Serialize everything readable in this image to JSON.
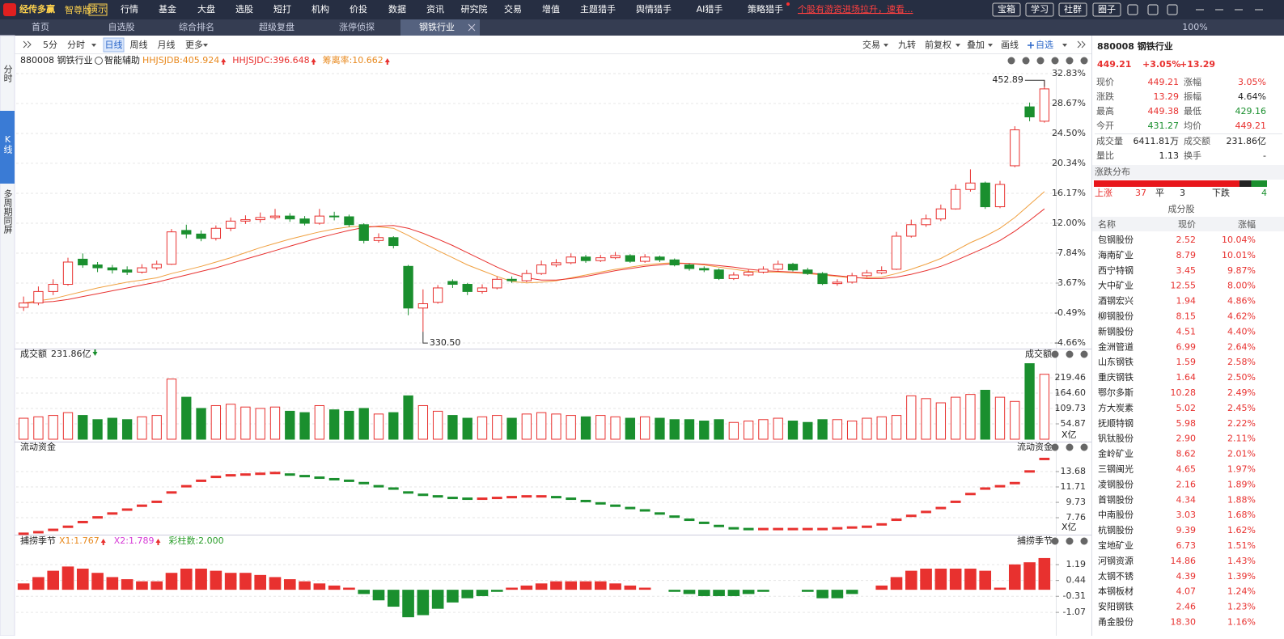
{
  "app": {
    "logo": "经传多赢",
    "edition": "智尊版",
    "demo": "演示",
    "menu": [
      "行情",
      "基金",
      "大盘",
      "选股",
      "短打",
      "机构",
      "价投",
      "数据",
      "资讯",
      "研究院",
      "交易",
      "增值",
      "主题猎手",
      "舆情猎手",
      "AI猎手",
      "策略猎手"
    ],
    "promo": "个股有游资进场拉升，速看...",
    "buttons": [
      "宝箱",
      "学习",
      "社群",
      "圈子"
    ]
  },
  "tabs": {
    "items": [
      "首页",
      "自选股",
      "综合排名",
      "超级复盘",
      "涨停侦探",
      "钢铁行业"
    ],
    "active": 5,
    "zoom": "100%"
  },
  "sidebar": {
    "items": [
      "分时",
      "K线",
      "多周期同屏"
    ],
    "active": 1
  },
  "toolbar": {
    "left": [
      "5分",
      "分时",
      "日线",
      "周线",
      "月线",
      "更多"
    ],
    "active": 2,
    "right": [
      "交易",
      "九转",
      "前复权",
      "叠加",
      "画线",
      "自选"
    ]
  },
  "kline": {
    "name": "880008 钢铁行业",
    "assist": "智能辅助",
    "legend": [
      {
        "text": "HHJSJDB:405.924",
        "color": "#e8891e"
      },
      {
        "text": "HHJSJDC:396.648",
        "color": "#e8312f"
      },
      {
        "text": "筹离率:10.662",
        "color": "#e8891e"
      }
    ],
    "ylim": [
      -5.11,
      33.39
    ],
    "yticks": [
      {
        "value": 32.83,
        "label": "32.83%"
      },
      {
        "value": 28.67,
        "label": "28.67%"
      },
      {
        "value": 24.5,
        "label": "24.50%"
      },
      {
        "value": 20.34,
        "label": "20.34%"
      },
      {
        "value": 16.17,
        "label": "16.17%"
      },
      {
        "value": 12,
        "label": "12.00%"
      },
      {
        "value": 7.84,
        "label": "7.84%"
      },
      {
        "value": 3.67,
        "label": "3.67%"
      },
      {
        "value": -0.49,
        "label": "-0.49%"
      },
      {
        "value": -4.66,
        "label": "-4.66%"
      }
    ],
    "candles": [
      [
        0.3,
        0.9,
        1.8,
        -0.2
      ],
      [
        0.9,
        2.5,
        3.2,
        0.6
      ],
      [
        2.5,
        3.5,
        4.2,
        2.0
      ],
      [
        3.5,
        6.6,
        7.2,
        3.3
      ],
      [
        7.0,
        6.2,
        7.8,
        5.8
      ],
      [
        6.2,
        5.8,
        6.6,
        5.2
      ],
      [
        5.8,
        5.5,
        6.2,
        5.0
      ],
      [
        5.5,
        5.2,
        6.0,
        4.8
      ],
      [
        5.2,
        5.8,
        6.3,
        5.0
      ],
      [
        5.8,
        6.3,
        6.8,
        5.5
      ],
      [
        6.3,
        10.8,
        11.2,
        6.2
      ],
      [
        11.0,
        10.5,
        11.8,
        9.9
      ],
      [
        10.5,
        9.9,
        11.0,
        9.5
      ],
      [
        9.9,
        11.3,
        11.7,
        9.6
      ],
      [
        11.3,
        12.3,
        12.8,
        10.9
      ],
      [
        12.3,
        12.5,
        13.1,
        11.9
      ],
      [
        12.5,
        12.8,
        13.5,
        12.1
      ],
      [
        12.8,
        13.0,
        14.0,
        12.5
      ],
      [
        13.0,
        12.6,
        13.4,
        12.2
      ],
      [
        12.6,
        12.0,
        13.0,
        11.7
      ],
      [
        12.0,
        13.0,
        14.0,
        11.8
      ],
      [
        13.0,
        12.9,
        13.6,
        12.4
      ],
      [
        12.9,
        11.8,
        13.2,
        11.5
      ],
      [
        11.8,
        9.6,
        12.0,
        9.2
      ],
      [
        9.6,
        10.0,
        10.6,
        9.3
      ],
      [
        10.0,
        8.9,
        10.2,
        8.5
      ],
      [
        6.0,
        0.2,
        6.2,
        -0.8
      ],
      [
        0.2,
        0.8,
        2.8,
        -3.1
      ],
      [
        1.0,
        3.0,
        3.4,
        0.8
      ],
      [
        3.9,
        3.5,
        4.2,
        3.0
      ],
      [
        3.5,
        2.5,
        3.7,
        2.0
      ],
      [
        2.5,
        3.0,
        3.5,
        2.2
      ],
      [
        3.0,
        4.2,
        4.6,
        2.8
      ],
      [
        4.2,
        4.0,
        4.6,
        3.7
      ],
      [
        4.0,
        5.0,
        5.5,
        3.8
      ],
      [
        5.0,
        6.2,
        6.8,
        4.8
      ],
      [
        6.2,
        6.5,
        7.0,
        5.9
      ],
      [
        6.5,
        7.3,
        7.8,
        6.3
      ],
      [
        7.3,
        6.8,
        7.6,
        6.5
      ],
      [
        6.8,
        7.2,
        7.6,
        6.6
      ],
      [
        7.2,
        7.5,
        8.0,
        7.0
      ],
      [
        7.5,
        6.7,
        7.7,
        6.5
      ],
      [
        6.7,
        7.3,
        7.7,
        6.5
      ],
      [
        7.3,
        6.9,
        7.5,
        6.6
      ],
      [
        6.9,
        6.2,
        7.1,
        6.0
      ],
      [
        6.2,
        5.7,
        6.4,
        5.4
      ],
      [
        5.7,
        5.5,
        6.0,
        5.2
      ],
      [
        5.5,
        4.3,
        5.7,
        4.1
      ],
      [
        4.3,
        4.8,
        5.2,
        4.1
      ],
      [
        4.8,
        5.2,
        5.6,
        4.6
      ],
      [
        5.2,
        5.6,
        6.0,
        5.0
      ],
      [
        5.6,
        6.3,
        6.8,
        5.4
      ],
      [
        6.3,
        5.5,
        6.5,
        5.3
      ],
      [
        5.5,
        5.0,
        5.8,
        4.8
      ],
      [
        5.0,
        3.6,
        5.2,
        3.4
      ],
      [
        3.6,
        3.8,
        4.2,
        3.3
      ],
      [
        3.8,
        4.7,
        5.1,
        3.6
      ],
      [
        4.7,
        5.1,
        5.5,
        4.5
      ],
      [
        5.1,
        5.4,
        6.0,
        4.9
      ],
      [
        5.6,
        10.2,
        10.8,
        5.5
      ],
      [
        10.2,
        11.8,
        12.5,
        10.0
      ],
      [
        11.8,
        12.6,
        13.2,
        11.5
      ],
      [
        12.6,
        14.0,
        14.6,
        12.3
      ],
      [
        14.0,
        16.7,
        17.4,
        13.9
      ],
      [
        16.7,
        17.6,
        19.5,
        16.4
      ],
      [
        17.6,
        14.3,
        17.8,
        14.0
      ],
      [
        14.3,
        17.4,
        17.9,
        14.1
      ],
      [
        20.0,
        25.0,
        25.5,
        19.8
      ],
      [
        28.2,
        26.8,
        28.8,
        26.2
      ],
      [
        26.2,
        30.7,
        31.9,
        26.0
      ]
    ],
    "ma": [
      {
        "color": "#f0a040",
        "values": [
          0.9,
          1.2,
          1.5,
          2.0,
          2.5,
          3.0,
          3.4,
          3.8,
          4.1,
          4.4,
          5.0,
          5.5,
          6.0,
          6.6,
          7.2,
          7.9,
          8.6,
          9.2,
          9.8,
          10.3,
          10.8,
          11.2,
          11.5,
          11.6,
          11.5,
          11.3,
          10.3,
          9.2,
          8.2,
          7.2,
          6.2,
          5.4,
          4.6,
          3.9,
          3.7,
          3.8,
          4.0,
          4.4,
          4.8,
          5.2,
          5.6,
          5.9,
          6.2,
          6.4,
          6.5,
          6.4,
          6.2,
          5.9,
          5.6,
          5.3,
          5.2,
          5.2,
          5.1,
          5.0,
          4.8,
          4.6,
          4.4,
          4.4,
          4.5,
          5.0,
          5.6,
          6.3,
          7.1,
          8.2,
          9.3,
          10.2,
          11.3,
          12.8,
          14.6,
          16.4
        ]
      },
      {
        "color": "#e8312f",
        "values": [
          0.9,
          1.0,
          1.1,
          1.4,
          1.8,
          2.2,
          2.6,
          3.0,
          3.4,
          3.8,
          4.3,
          4.8,
          5.3,
          5.8,
          6.4,
          7.0,
          7.6,
          8.2,
          8.8,
          9.4,
          10.0,
          10.5,
          11.0,
          11.4,
          11.6,
          11.7,
          11.3,
          10.6,
          9.8,
          8.9,
          7.9,
          6.9,
          5.9,
          5.0,
          4.4,
          4.1,
          4.1,
          4.3,
          4.6,
          5.0,
          5.4,
          5.7,
          6.0,
          6.2,
          6.4,
          6.4,
          6.3,
          6.1,
          5.9,
          5.6,
          5.4,
          5.3,
          5.2,
          5.1,
          4.9,
          4.7,
          4.5,
          4.3,
          4.3,
          4.5,
          4.9,
          5.4,
          6.0,
          6.8,
          7.7,
          8.6,
          9.6,
          10.9,
          12.4,
          14.0
        ]
      }
    ],
    "high_label": "452.89",
    "low_label": "330.50"
  },
  "volume": {
    "label": "成交额",
    "value_text": "231.86亿",
    "unit": "X亿",
    "ylim": [
      0,
      289
    ],
    "yticks": [
      {
        "value": 219.46,
        "label": "219.46"
      },
      {
        "value": 164.6,
        "label": "164.60"
      },
      {
        "value": 109.73,
        "label": "109.73"
      },
      {
        "value": 54.87,
        "label": "54.87"
      }
    ],
    "values": [
      75,
      80,
      85,
      95,
      85,
      70,
      75,
      70,
      80,
      85,
      215,
      150,
      110,
      120,
      125,
      115,
      110,
      115,
      100,
      95,
      120,
      105,
      100,
      110,
      90,
      95,
      155,
      120,
      100,
      85,
      75,
      80,
      85,
      75,
      90,
      95,
      90,
      85,
      80,
      85,
      80,
      75,
      80,
      75,
      70,
      70,
      65,
      70,
      60,
      65,
      70,
      75,
      65,
      60,
      70,
      70,
      65,
      75,
      80,
      85,
      155,
      145,
      130,
      150,
      160,
      175,
      150,
      135,
      270,
      232
    ]
  },
  "flow": {
    "label": "流动资金",
    "unit": "X亿",
    "ylim": [
      5.48,
      16.07
    ],
    "yticks": [
      {
        "value": 13.68,
        "label": "13.68"
      },
      {
        "value": 11.71,
        "label": "11.71"
      },
      {
        "value": 9.73,
        "label": "9.73"
      },
      {
        "value": 7.76,
        "label": "7.76"
      }
    ],
    "values": [
      5.7,
      5.9,
      6.2,
      6.6,
      7.2,
      7.8,
      8.3,
      8.8,
      9.3,
      9.8,
      11.0,
      11.8,
      12.5,
      13.0,
      13.2,
      13.3,
      13.4,
      13.5,
      13.3,
      13.1,
      12.9,
      12.7,
      12.5,
      12.2,
      11.8,
      11.5,
      11.0,
      10.7,
      10.5,
      10.3,
      10.2,
      10.2,
      10.3,
      10.4,
      10.5,
      10.5,
      10.4,
      10.2,
      9.9,
      9.6,
      9.3,
      9.0,
      8.7,
      8.3,
      7.9,
      7.5,
      7.1,
      6.7,
      6.4,
      6.3,
      6.3,
      6.3,
      6.3,
      6.3,
      6.3,
      6.4,
      6.5,
      6.6,
      6.9,
      7.5,
      8.0,
      8.5,
      9.0,
      9.8,
      10.8,
      11.5,
      11.8,
      12.2,
      13.7,
      15.3
    ]
  },
  "osc": {
    "label": "捕捞季节",
    "legend": [
      {
        "text": "X1:1.767",
        "color": "#e8891e"
      },
      {
        "text": "X2:1.789",
        "color": "#d63ad6"
      },
      {
        "text": "彩柱数:2.000",
        "color": "#2a9d2a"
      }
    ],
    "ylim": [
      -1.64,
      1.88
    ],
    "yticks": [
      {
        "value": 1.19,
        "label": "1.19"
      },
      {
        "value": 0.44,
        "label": "0.44"
      },
      {
        "value": -0.31,
        "label": "-0.31"
      },
      {
        "value": -1.07,
        "label": "-1.07"
      }
    ],
    "values": [
      0.3,
      0.6,
      0.9,
      1.1,
      1.0,
      0.8,
      0.6,
      0.5,
      0.4,
      0.4,
      0.8,
      1.0,
      1.0,
      0.9,
      0.8,
      0.8,
      0.7,
      0.6,
      0.5,
      0.4,
      0.3,
      0.2,
      0.1,
      -0.2,
      -0.5,
      -0.8,
      -1.3,
      -1.2,
      -0.9,
      -0.6,
      -0.4,
      -0.3,
      -0.1,
      0.1,
      0.2,
      0.3,
      0.4,
      0.4,
      0.4,
      0.4,
      0.3,
      0.2,
      0.1,
      0.0,
      -0.1,
      -0.2,
      -0.3,
      -0.3,
      -0.3,
      -0.2,
      -0.1,
      0.0,
      0.0,
      -0.1,
      -0.4,
      -0.4,
      -0.2,
      0.0,
      0.2,
      0.6,
      0.9,
      1.0,
      1.0,
      1.0,
      1.0,
      0.9,
      0.1,
      1.2,
      1.3,
      1.5
    ]
  },
  "quote": {
    "title": "880008 钢铁行业",
    "price": "449.21",
    "pct": "+3.05%",
    "chg": "+13.29",
    "stats": [
      [
        {
          "label": "现价",
          "value": "449.21",
          "color": "#e8312f"
        },
        {
          "label": "涨幅",
          "value": "3.05%",
          "color": "#e8312f"
        }
      ],
      [
        {
          "label": "涨跌",
          "value": "13.29",
          "color": "#e8312f"
        },
        {
          "label": "振幅",
          "value": "4.64%",
          "color": "#222222"
        }
      ],
      [
        {
          "label": "最高",
          "value": "449.38",
          "color": "#e8312f"
        },
        {
          "label": "最低",
          "value": "429.16",
          "color": "#1a8f2e"
        }
      ],
      [
        {
          "label": "今开",
          "value": "431.27",
          "color": "#1a8f2e"
        },
        {
          "label": "均价",
          "value": "449.21",
          "color": "#e8312f"
        }
      ],
      [
        {
          "label": "成交量",
          "value": "6411.81万",
          "color": "#222222"
        },
        {
          "label": "成交额",
          "value": "231.86亿",
          "color": "#222222"
        }
      ],
      [
        {
          "label": "量比",
          "value": "1.13",
          "color": "#222222"
        },
        {
          "label": "换手",
          "value": "-",
          "color": "#222222"
        }
      ]
    ],
    "dist_title": "涨跌分布",
    "up_label": "上涨",
    "up": 37,
    "flat_label": "平",
    "flat": 3,
    "down_label": "下跌",
    "down": 4,
    "list_title": "成分股",
    "columns": [
      "名称",
      "现价",
      "涨幅"
    ],
    "rows": [
      [
        "包钢股份",
        "2.52",
        "10.04%"
      ],
      [
        "海南矿业",
        "8.79",
        "10.01%"
      ],
      [
        "西宁特钢",
        "3.45",
        "9.87%"
      ],
      [
        "大中矿业",
        "12.55",
        "8.00%"
      ],
      [
        "酒钢宏兴",
        "1.94",
        "4.86%"
      ],
      [
        "柳钢股份",
        "8.15",
        "4.62%"
      ],
      [
        "新钢股份",
        "4.51",
        "4.40%"
      ],
      [
        "金洲管道",
        "6.99",
        "2.64%"
      ],
      [
        "山东钢铁",
        "1.59",
        "2.58%"
      ],
      [
        "重庆钢铁",
        "1.64",
        "2.50%"
      ],
      [
        "鄂尔多斯",
        "10.28",
        "2.49%"
      ],
      [
        "方大炭素",
        "5.02",
        "2.45%"
      ],
      [
        "抚顺特钢",
        "5.98",
        "2.22%"
      ],
      [
        "钒钛股份",
        "2.90",
        "2.11%"
      ],
      [
        "金岭矿业",
        "8.62",
        "2.01%"
      ],
      [
        "三钢闽光",
        "4.65",
        "1.97%"
      ],
      [
        "凌钢股份",
        "2.16",
        "1.89%"
      ],
      [
        "首钢股份",
        "4.34",
        "1.88%"
      ],
      [
        "中南股份",
        "3.03",
        "1.68%"
      ],
      [
        "杭钢股份",
        "9.39",
        "1.62%"
      ],
      [
        "宝地矿业",
        "6.73",
        "1.51%"
      ],
      [
        "河钢资源",
        "14.86",
        "1.43%"
      ],
      [
        "太钢不锈",
        "4.39",
        "1.39%"
      ],
      [
        "本钢板材",
        "4.07",
        "1.24%"
      ],
      [
        "安阳钢铁",
        "2.46",
        "1.23%"
      ],
      [
        "甬金股份",
        "18.30",
        "1.16%"
      ]
    ]
  }
}
